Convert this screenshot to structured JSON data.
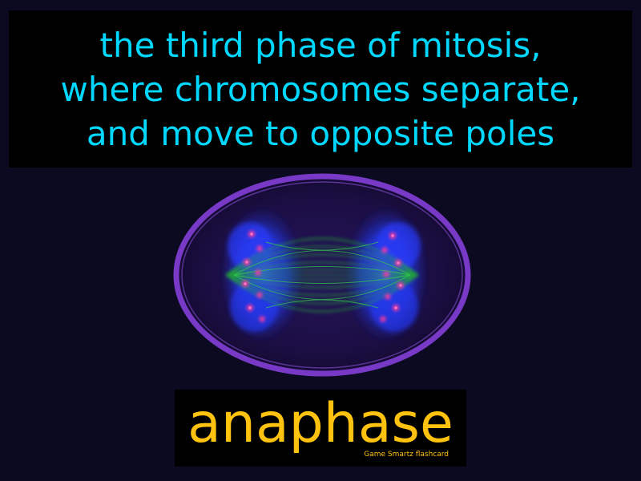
{
  "definition": {
    "lines": [
      "the third phase of mitosis,",
      "where chromosomes separate,",
      "and move to opposite poles"
    ]
  },
  "term": {
    "word": "anaphase"
  },
  "credit": "Game Smartz flashcard",
  "image": {
    "subject": "micrograph of a dividing cell in anaphase",
    "colors": {
      "background": "#0b0a20",
      "cell_membrane": "#7d3ccf",
      "chromosomes": "#2a3cff",
      "spindle_fibers": "#1f9a2e",
      "kinetochores": "#ff3aa0"
    }
  },
  "colors": {
    "definition_text": "#00d8ff",
    "term_text": "#ffc20e",
    "text_box_background": "#000000"
  }
}
